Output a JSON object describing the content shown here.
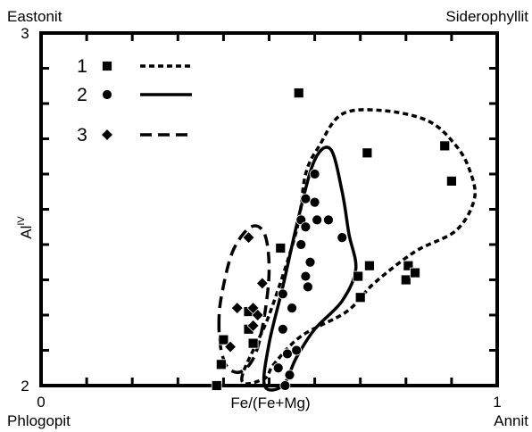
{
  "chart_data": {
    "type": "scatter",
    "corner_labels": {
      "top_left": "Eastonit",
      "top_right": "Siderophyllit",
      "bottom_left": "Phlogopit",
      "bottom_right": "Annit"
    },
    "xlabel": "Fe/(Fe+Mg)",
    "ylabel_main": "Al",
    "ylabel_sup": "IV",
    "xlim": [
      0,
      1
    ],
    "ylim": [
      2,
      3
    ],
    "x_ticks": [
      "0",
      "1"
    ],
    "y_ticks": [
      "2",
      "3"
    ],
    "grid": false,
    "legend_position": "top-left",
    "series": [
      {
        "name": "1",
        "marker": "square",
        "line": "dotted",
        "points": [
          [
            0.565,
            2.83
          ],
          [
            0.715,
            2.66
          ],
          [
            0.885,
            2.68
          ],
          [
            0.9,
            2.58
          ],
          [
            0.525,
            2.39
          ],
          [
            0.455,
            2.21
          ],
          [
            0.72,
            2.34
          ],
          [
            0.695,
            2.31
          ],
          [
            0.7,
            2.25
          ],
          [
            0.805,
            2.34
          ],
          [
            0.8,
            2.3
          ],
          [
            0.82,
            2.32
          ],
          [
            0.455,
            2.16
          ],
          [
            0.4,
            2.13
          ],
          [
            0.395,
            2.06
          ],
          [
            0.465,
            2.12
          ],
          [
            0.385,
            2.0
          ]
        ],
        "envelope": [
          [
            0.44,
            2.02
          ],
          [
            0.5,
            2.2
          ],
          [
            0.56,
            2.44
          ],
          [
            0.58,
            2.6
          ],
          [
            0.61,
            2.68
          ],
          [
            0.66,
            2.77
          ],
          [
            0.75,
            2.78
          ],
          [
            0.85,
            2.75
          ],
          [
            0.91,
            2.68
          ],
          [
            0.94,
            2.61
          ],
          [
            0.95,
            2.53
          ],
          [
            0.91,
            2.44
          ],
          [
            0.82,
            2.38
          ],
          [
            0.73,
            2.29
          ],
          [
            0.67,
            2.21
          ],
          [
            0.57,
            2.14
          ],
          [
            0.51,
            2.06
          ],
          [
            0.49,
            2.02
          ]
        ]
      },
      {
        "name": "2",
        "marker": "circle",
        "line": "solid",
        "points": [
          [
            0.6,
            2.6
          ],
          [
            0.58,
            2.53
          ],
          [
            0.6,
            2.52
          ],
          [
            0.57,
            2.47
          ],
          [
            0.58,
            2.45
          ],
          [
            0.605,
            2.47
          ],
          [
            0.63,
            2.47
          ],
          [
            0.57,
            2.4
          ],
          [
            0.66,
            2.42
          ],
          [
            0.59,
            2.35
          ],
          [
            0.58,
            2.31
          ],
          [
            0.585,
            2.28
          ],
          [
            0.53,
            2.26
          ],
          [
            0.55,
            2.22
          ],
          [
            0.53,
            2.16
          ],
          [
            0.54,
            2.09
          ],
          [
            0.52,
            2.05
          ],
          [
            0.56,
            2.1
          ],
          [
            0.545,
            2.03
          ],
          [
            0.535,
            2.0
          ]
        ],
        "envelope": [
          [
            0.49,
            2.0
          ],
          [
            0.5,
            2.12
          ],
          [
            0.53,
            2.28
          ],
          [
            0.565,
            2.48
          ],
          [
            0.6,
            2.64
          ],
          [
            0.635,
            2.67
          ],
          [
            0.66,
            2.55
          ],
          [
            0.675,
            2.43
          ],
          [
            0.69,
            2.33
          ],
          [
            0.66,
            2.24
          ],
          [
            0.6,
            2.16
          ],
          [
            0.56,
            2.08
          ],
          [
            0.53,
            2.0
          ]
        ]
      },
      {
        "name": "3",
        "marker": "diamond",
        "line": "dashed",
        "points": [
          [
            0.455,
            2.42
          ],
          [
            0.485,
            2.29
          ],
          [
            0.43,
            2.22
          ],
          [
            0.465,
            2.22
          ],
          [
            0.465,
            2.17
          ],
          [
            0.475,
            2.2
          ],
          [
            0.415,
            2.11
          ]
        ],
        "envelope": [
          [
            0.39,
            2.17
          ],
          [
            0.395,
            2.25
          ],
          [
            0.42,
            2.38
          ],
          [
            0.46,
            2.45
          ],
          [
            0.49,
            2.43
          ],
          [
            0.5,
            2.33
          ],
          [
            0.49,
            2.2
          ],
          [
            0.47,
            2.09
          ],
          [
            0.44,
            2.04
          ],
          [
            0.41,
            2.05
          ],
          [
            0.395,
            2.1
          ]
        ]
      }
    ]
  }
}
